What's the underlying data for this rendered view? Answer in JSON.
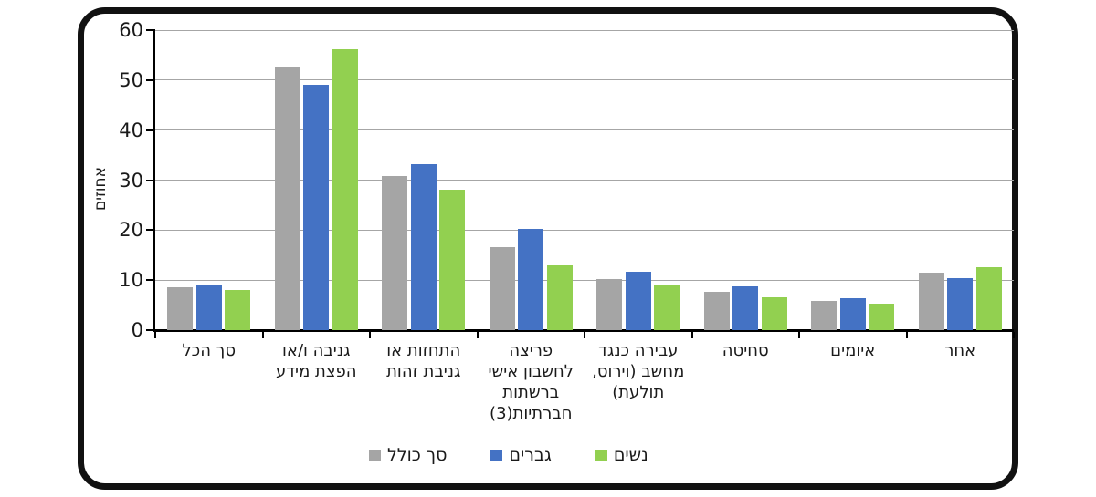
{
  "chart_data": {
    "type": "bar",
    "title": "",
    "ylabel": "אחוזים",
    "xlabel": "",
    "ylim": [
      0,
      60
    ],
    "yticks": [
      0,
      10,
      20,
      30,
      40,
      50,
      60
    ],
    "grid": true,
    "direction": "rtl",
    "legend_position": "bottom",
    "categories": [
      "סך הכל",
      "גניבה ו/או\nהפצת מידע",
      "התחזות או\nגניבת זהות",
      "פריצה\nלחשבון אישי\nברשתות\nחברתיות(3)",
      "עבירה כנגד\nמחשב (וירוס,\nתולעת)",
      "סחיטה",
      "איומים",
      "אחר"
    ],
    "series": [
      {
        "name": "סך כולל",
        "color": "#A5A5A5",
        "values": [
          8.5,
          52.5,
          30.8,
          16.6,
          10.3,
          7.7,
          5.9,
          11.5
        ]
      },
      {
        "name": "גברים",
        "color": "#4472C4",
        "values": [
          9.1,
          49.1,
          33.2,
          20.3,
          11.7,
          8.8,
          6.4,
          10.4
        ]
      },
      {
        "name": "נשים",
        "color": "#92D050",
        "values": [
          8.0,
          56.1,
          28.0,
          13.0,
          8.9,
          6.5,
          5.2,
          12.5
        ]
      }
    ]
  },
  "style": {
    "frame_border_color": "#111111",
    "gridline_color": "#A6A6A6",
    "axis_color": "#000000",
    "text_color": "#1A1A1A"
  }
}
